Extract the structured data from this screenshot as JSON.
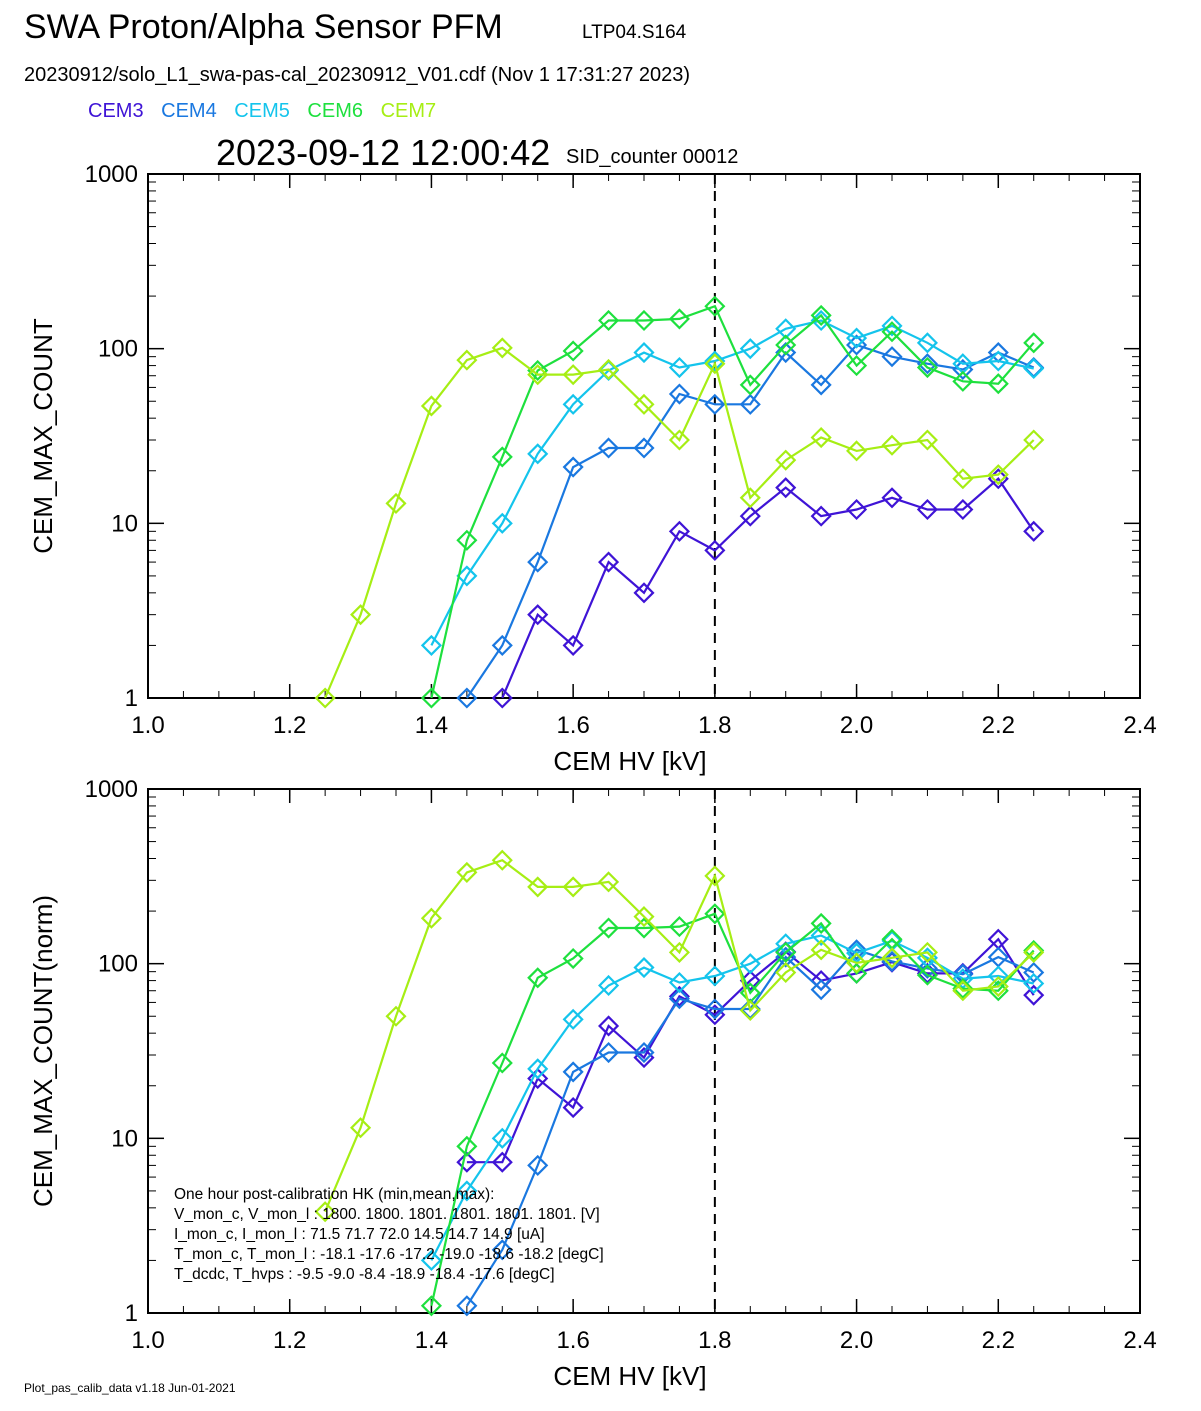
{
  "header": {
    "title": "SWA Proton/Alpha Sensor PFM",
    "subtitle": "LTP04.S164",
    "file_line": "20230912/solo_L1_swa-pas-cal_20230912_V01.cdf  (Nov  1 17:31:27 2023)",
    "timestamp": "2023-09-12 12:00:42",
    "sid": "SID_counter 00012"
  },
  "legend": [
    {
      "name": "CEM3",
      "color": "#3f14d6"
    },
    {
      "name": "CEM4",
      "color": "#1a78e0"
    },
    {
      "name": "CEM5",
      "color": "#14c4ec"
    },
    {
      "name": "CEM6",
      "color": "#1ee03e"
    },
    {
      "name": "CEM7",
      "color": "#a6ee14"
    }
  ],
  "footer": "Plot_pas_calib_data v1.18 Jun-01-2021",
  "hk_box": {
    "lines": [
      "One hour post-calibration HK (min,mean,max):",
      "V_mon_c, V_mon_l :   1800.  1800.  1801.      1801.  1801.  1801. [V]",
      "I_mon_c,  I_mon_l :     71.5   71.7   72.0        14.5   14.7   14.9  [uA]",
      "T_mon_c, T_mon_l :   -18.1  -17.6  -17.2        -19.0  -18.6  -18.2  [degC]",
      "T_dcdc,    T_hvps :      -9.5    -9.0   -8.4         -18.9  -18.4  -17.6  [degC]"
    ]
  },
  "chart_data": [
    {
      "type": "line",
      "xlabel": "CEM HV [kV]",
      "ylabel": "CEM_MAX_COUNT",
      "xlim": [
        1.0,
        2.4
      ],
      "ylim": [
        1,
        1000
      ],
      "yscale": "log",
      "xticks": [
        "1.0",
        "1.2",
        "1.4",
        "1.6",
        "1.8",
        "2.0",
        "2.2",
        "2.4"
      ],
      "yticks": [
        "1",
        "10",
        "100",
        "1000"
      ],
      "vline_x": 1.8,
      "series": [
        {
          "name": "CEM3",
          "x": [
            1.5,
            1.55,
            1.6,
            1.65,
            1.7,
            1.75,
            1.8,
            1.85,
            1.9,
            1.95,
            2.0,
            2.05,
            2.1,
            2.15,
            2.2,
            2.25
          ],
          "y": [
            1,
            3,
            2,
            6,
            4,
            9,
            7,
            11,
            16,
            11,
            12,
            14,
            12,
            12,
            18,
            9
          ]
        },
        {
          "name": "CEM4",
          "x": [
            1.45,
            1.5,
            1.55,
            1.6,
            1.65,
            1.7,
            1.75,
            1.8,
            1.85,
            1.9,
            1.95,
            2.0,
            2.05,
            2.1,
            2.15,
            2.2,
            2.25
          ],
          "y": [
            1,
            2,
            6,
            21,
            27,
            27,
            55,
            48,
            48,
            95,
            62,
            105,
            90,
            82,
            76,
            95,
            78
          ]
        },
        {
          "name": "CEM5",
          "x": [
            1.4,
            1.45,
            1.5,
            1.55,
            1.6,
            1.65,
            1.7,
            1.75,
            1.8,
            1.85,
            1.9,
            1.95,
            2.0,
            2.05,
            2.1,
            2.15,
            2.2,
            2.25
          ],
          "y": [
            2,
            5,
            10,
            25,
            48,
            75,
            95,
            78,
            85,
            100,
            130,
            145,
            115,
            135,
            108,
            82,
            85,
            77
          ]
        },
        {
          "name": "CEM6",
          "x": [
            1.4,
            1.45,
            1.5,
            1.55,
            1.6,
            1.65,
            1.7,
            1.75,
            1.8,
            1.85,
            1.9,
            1.95,
            2.0,
            2.05,
            2.1,
            2.15,
            2.2,
            2.25
          ],
          "y": [
            1,
            8,
            24,
            75,
            97,
            145,
            145,
            148,
            175,
            62,
            105,
            155,
            80,
            125,
            78,
            65,
            63,
            108
          ]
        },
        {
          "name": "CEM7",
          "x": [
            1.25,
            1.3,
            1.35,
            1.4,
            1.45,
            1.5,
            1.55,
            1.6,
            1.65,
            1.7,
            1.75,
            1.8,
            1.85,
            1.9,
            1.95,
            2.0,
            2.05,
            2.1,
            2.15,
            2.2,
            2.25
          ],
          "y": [
            1,
            3,
            13,
            47,
            86,
            101,
            71,
            71,
            76,
            48,
            30,
            82,
            14,
            23,
            31,
            26,
            28,
            30,
            18,
            19,
            30
          ]
        }
      ]
    },
    {
      "type": "line",
      "xlabel": "CEM HV [kV]",
      "ylabel": "CEM_MAX_COUNT(norm)",
      "xlim": [
        1.0,
        2.4
      ],
      "ylim": [
        1,
        1000
      ],
      "yscale": "log",
      "xticks": [
        "1.0",
        "1.2",
        "1.4",
        "1.6",
        "1.8",
        "2.0",
        "2.2",
        "2.4"
      ],
      "yticks": [
        "1",
        "10",
        "100",
        "1000"
      ],
      "vline_x": 1.8,
      "series": [
        {
          "name": "CEM3",
          "x": [
            1.45,
            1.5,
            1.55,
            1.6,
            1.65,
            1.7,
            1.75,
            1.8,
            1.85,
            1.9,
            1.95,
            2.0,
            2.05,
            2.1,
            2.15,
            2.2,
            2.25
          ],
          "y": [
            7.3,
            7.3,
            22,
            15,
            44,
            29,
            65,
            51,
            80,
            117,
            80,
            88,
            102,
            88,
            88,
            138,
            66
          ]
        },
        {
          "name": "CEM4",
          "x": [
            1.45,
            1.5,
            1.55,
            1.6,
            1.65,
            1.7,
            1.75,
            1.8,
            1.85,
            1.9,
            1.95,
            2.0,
            2.05,
            2.1,
            2.15,
            2.2,
            2.25
          ],
          "y": [
            1.1,
            2.3,
            7,
            24,
            31,
            31,
            63,
            55,
            55,
            109,
            71,
            120,
            103,
            94,
            87,
            109,
            89
          ]
        },
        {
          "name": "CEM5",
          "x": [
            1.4,
            1.45,
            1.5,
            1.55,
            1.6,
            1.65,
            1.7,
            1.75,
            1.8,
            1.85,
            1.9,
            1.95,
            2.0,
            2.05,
            2.1,
            2.15,
            2.2,
            2.25
          ],
          "y": [
            2,
            5,
            10,
            25,
            48,
            75,
            95,
            78,
            85,
            100,
            130,
            145,
            115,
            135,
            108,
            82,
            85,
            77
          ]
        },
        {
          "name": "CEM6",
          "x": [
            1.4,
            1.45,
            1.5,
            1.55,
            1.6,
            1.65,
            1.7,
            1.75,
            1.8,
            1.85,
            1.9,
            1.95,
            2.0,
            2.05,
            2.1,
            2.15,
            2.2,
            2.25
          ],
          "y": [
            1.1,
            9,
            27,
            83,
            107,
            160,
            160,
            163,
            193,
            68,
            116,
            170,
            88,
            138,
            86,
            72,
            70,
            119
          ]
        },
        {
          "name": "CEM7",
          "x": [
            1.25,
            1.3,
            1.35,
            1.4,
            1.45,
            1.5,
            1.55,
            1.6,
            1.65,
            1.7,
            1.75,
            1.8,
            1.85,
            1.9,
            1.95,
            2.0,
            2.05,
            2.1,
            2.15,
            2.2,
            2.25
          ],
          "y": [
            3.8,
            11.5,
            50,
            182,
            333,
            391,
            275,
            275,
            294,
            186,
            116,
            318,
            54,
            89,
            120,
            101,
            108,
            116,
            70,
            74,
            116
          ]
        }
      ]
    }
  ]
}
